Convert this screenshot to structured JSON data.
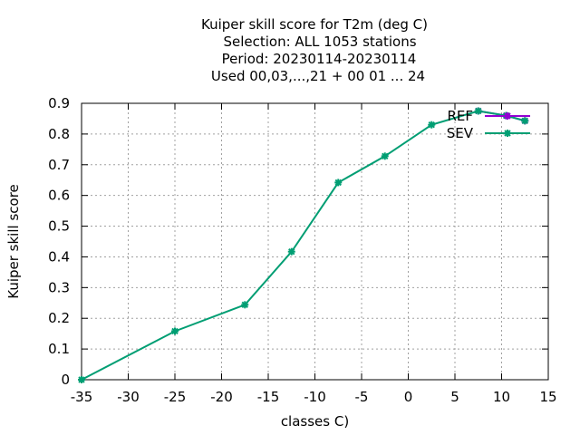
{
  "chart_data": {
    "type": "line",
    "title_lines": [
      "Kuiper skill score  for T2m (deg C)",
      "Selection: ALL   1053 stations",
      "Period: 20230114-20230114",
      "Used  00,03,...,21  + 00 01 ... 24"
    ],
    "xlabel": "classes C)",
    "ylabel": "Kuiper skill score",
    "xlim": [
      -35,
      15
    ],
    "ylim": [
      0,
      0.9
    ],
    "xticks": [
      "-35",
      "-30",
      "-25",
      "-20",
      "-15",
      "-10",
      "-5",
      "0",
      "5",
      "10",
      "15"
    ],
    "yticks": [
      "0",
      "0.1",
      "0.2",
      "0.3",
      "0.4",
      "0.5",
      "0.6",
      "0.7",
      "0.8",
      "0.9"
    ],
    "grid": true,
    "legend_position": "top-right",
    "series": [
      {
        "name": "REF",
        "color": "#9400d3",
        "x": [
          7.5,
          10.5,
          12.5
        ],
        "y": [
          0.875,
          0.86,
          0.843
        ]
      },
      {
        "name": "SEV",
        "color": "#009e73",
        "x": [
          -35,
          -25,
          -17.5,
          -12.5,
          -7.5,
          -2.5,
          2.5,
          7.5,
          10.5,
          12.5
        ],
        "y": [
          0.0,
          0.158,
          0.244,
          0.417,
          0.642,
          0.728,
          0.83,
          0.875,
          0.86,
          0.843
        ]
      }
    ]
  }
}
